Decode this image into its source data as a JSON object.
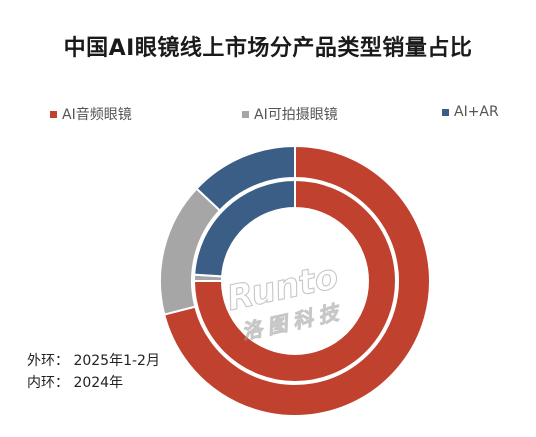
{
  "chart_data": {
    "type": "pie",
    "title": "中国AI眼镜线上市场分产品类型销量占比",
    "legend_position": "top",
    "categories": [
      "AI音频眼镜",
      "AI可拍摄眼镜",
      "AI+AR"
    ],
    "colors": {
      "AI音频眼镜": "#c0412e",
      "AI可拍摄眼镜": "#a6a6a6",
      "AI+AR": "#3a5e86"
    },
    "series": [
      {
        "ring": "outer",
        "values": [
          71,
          16,
          13
        ]
      },
      {
        "ring": "inner",
        "values": [
          75,
          1,
          24
        ]
      }
    ],
    "notes": [
      "外环：  2025年1-2月",
      "内环：  2024年"
    ],
    "watermark": "Runto 洛图科技"
  }
}
